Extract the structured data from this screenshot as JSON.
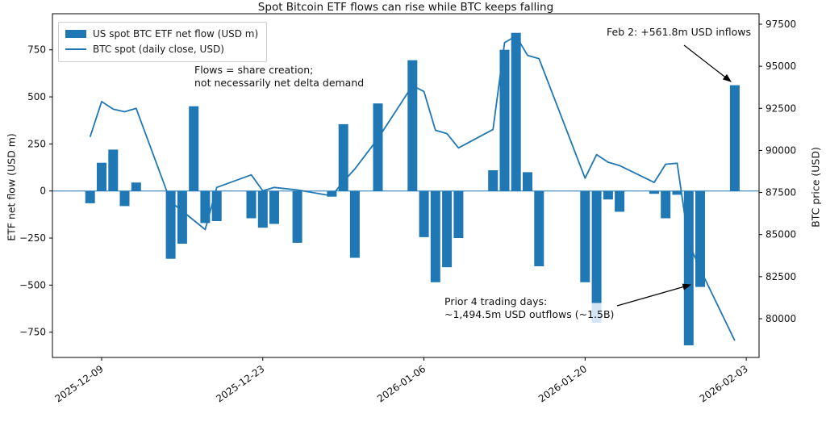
{
  "chart_data": {
    "type": "bar+line (dual axis)",
    "title": "Spot Bitcoin ETF flows can rise while BTC keeps falling",
    "legend": [
      {
        "label": "US spot BTC ETF net flow (USD m)",
        "type": "bar"
      },
      {
        "label": "BTC spot (daily close, USD)",
        "type": "line"
      }
    ],
    "colors": {
      "bar": "#1f77b4",
      "line": "#1f77b4",
      "bar_light_extension": "#d3e5f4",
      "axis": "#000000",
      "annotation_arrow": "#000000"
    },
    "left_axis": {
      "label": "ETF net flow (USD m)",
      "tick_values": [
        750,
        500,
        250,
        0,
        -250,
        -500,
        -750
      ],
      "tick_labels": [
        "750",
        "500",
        "250",
        "0",
        "−250",
        "−500",
        "−750"
      ],
      "range": [
        -885,
        940
      ]
    },
    "right_axis": {
      "label": "BTC price (USD)",
      "tick_values": [
        97500,
        95000,
        92500,
        90000,
        87500,
        85000,
        82500,
        80000
      ],
      "tick_labels": [
        "97500",
        "95000",
        "92500",
        "90000",
        "87500",
        "85000",
        "82500",
        "80000"
      ],
      "range": [
        77700,
        98200
      ]
    },
    "x_axis": {
      "tick_dates": [
        "2025-12-09",
        "2025-12-23",
        "2026-01-06",
        "2026-01-20",
        "2026-02-03"
      ],
      "label_rotation_deg": -35
    },
    "series": {
      "dates": [
        "2025-12-08",
        "2025-12-09",
        "2025-12-10",
        "2025-12-11",
        "2025-12-12",
        "2025-12-15",
        "2025-12-16",
        "2025-12-17",
        "2025-12-18",
        "2025-12-19",
        "2025-12-22",
        "2025-12-23",
        "2025-12-24",
        "2025-12-26",
        "2025-12-29",
        "2025-12-30",
        "2025-12-31",
        "2026-01-02",
        "2026-01-05",
        "2026-01-06",
        "2026-01-07",
        "2026-01-08",
        "2026-01-09",
        "2026-01-12",
        "2026-01-13",
        "2026-01-14",
        "2026-01-15",
        "2026-01-16",
        "2026-01-20",
        "2026-01-21",
        "2026-01-22",
        "2026-01-23",
        "2026-01-26",
        "2026-01-27",
        "2026-01-28",
        "2026-01-29",
        "2026-01-30",
        "2026-02-02"
      ],
      "etf_net_flow_usd_m": [
        -65,
        150,
        220,
        -80,
        45,
        -360,
        -280,
        450,
        -170,
        -160,
        -145,
        -195,
        -175,
        -275,
        -30,
        355,
        -355,
        465,
        695,
        -245,
        -485,
        -405,
        -250,
        110,
        750,
        840,
        100,
        -400,
        -485,
        -595,
        -45,
        -110,
        -15,
        -145,
        -20,
        -820,
        -509.5,
        561.8
      ],
      "btc_close_usd": [
        90800,
        92900,
        92450,
        92300,
        92500,
        86950,
        86400,
        85850,
        85300,
        87800,
        88550,
        87600,
        87800,
        87650,
        87300,
        88150,
        88900,
        90700,
        93850,
        93500,
        91200,
        91000,
        90150,
        91250,
        96400,
        96800,
        95650,
        95450,
        88350,
        89750,
        89300,
        89100,
        88100,
        89180,
        89240,
        84500,
        82950,
        78700
      ]
    },
    "bar_light_extension": {
      "date": "2026-01-21",
      "from_value": -595,
      "to_value": -700
    },
    "annotations": {
      "flows_note": {
        "line1": "Flows = share creation;",
        "line2": "not necessarily net delta demand"
      },
      "feb2": {
        "text": "Feb 2: +561.8m USD inflows",
        "arrow_from": [
          848,
          56
        ],
        "arrow_to": [
          906,
          101
        ]
      },
      "prior4": {
        "line1": "Prior 4 trading days:",
        "line2": "~1,494.5m USD outflows (~1.5B)",
        "arrow_from": [
          765,
          379
        ],
        "arrow_to": [
          856,
          353
        ]
      }
    }
  }
}
